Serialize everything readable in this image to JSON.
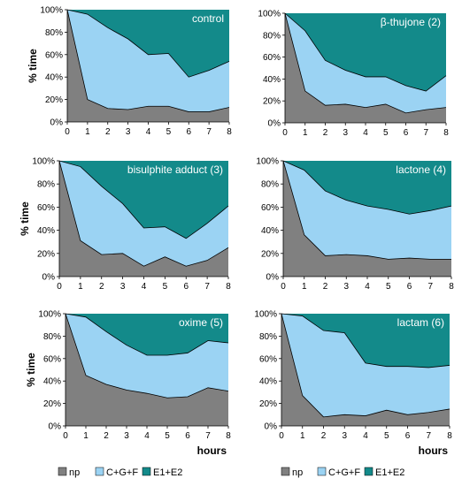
{
  "colors": {
    "np": "#808080",
    "cgf": "#9bd3f3",
    "e1e2": "#138a8a",
    "outline": "#000000"
  },
  "legend_left": {
    "np": "np",
    "cgf": "C+G+F",
    "e1e2": "E1+E2"
  },
  "legend_right": {
    "np": "np",
    "cgf": "C+G+F",
    "e1e2": "E1+E2"
  },
  "chart_data": [
    {
      "type": "area",
      "stacked": true,
      "title": "control",
      "ylabel": "% time",
      "xlabel": "",
      "x": [
        0,
        1,
        2,
        3,
        4,
        5,
        6,
        7,
        8
      ],
      "ylim": [
        0,
        100
      ],
      "yticks": [
        "0%",
        "20%",
        "40%",
        "60%",
        "80%",
        "100%"
      ],
      "series": [
        {
          "name": "np",
          "values": [
            100,
            20,
            12,
            11,
            14,
            14,
            9,
            9,
            13
          ]
        },
        {
          "name": "C+G+F",
          "values": [
            0,
            76,
            72,
            63,
            46,
            47,
            31,
            37,
            41
          ]
        },
        {
          "name": "E1+E2",
          "values": [
            0,
            4,
            16,
            26,
            40,
            39,
            60,
            54,
            46
          ]
        }
      ]
    },
    {
      "type": "area",
      "stacked": true,
      "title": "β-thujone (2)",
      "ylabel": "",
      "xlabel": "",
      "x": [
        0,
        1,
        2,
        3,
        4,
        5,
        6,
        7,
        8
      ],
      "ylim": [
        0,
        100
      ],
      "yticks": [
        "0%",
        "20%",
        "40%",
        "60%",
        "80%",
        "100%"
      ],
      "series": [
        {
          "name": "np",
          "values": [
            100,
            29,
            16,
            17,
            14,
            17,
            9,
            12,
            14
          ]
        },
        {
          "name": "C+G+F",
          "values": [
            0,
            55,
            41,
            31,
            28,
            25,
            25,
            17,
            29
          ]
        },
        {
          "name": "E1+E2",
          "values": [
            0,
            16,
            43,
            52,
            58,
            58,
            66,
            71,
            57
          ]
        }
      ]
    },
    {
      "type": "area",
      "stacked": true,
      "title": "bisulphite adduct (3)",
      "ylabel": "% time",
      "xlabel": "",
      "x": [
        0,
        1,
        2,
        3,
        4,
        5,
        6,
        7,
        8
      ],
      "ylim": [
        0,
        100
      ],
      "yticks": [
        "0%",
        "20%",
        "40%",
        "60%",
        "80%",
        "100%"
      ],
      "series": [
        {
          "name": "np",
          "values": [
            100,
            31,
            19,
            20,
            9,
            17,
            9,
            14,
            25
          ]
        },
        {
          "name": "C+G+F",
          "values": [
            0,
            64,
            59,
            43,
            33,
            26,
            24,
            32,
            36
          ]
        },
        {
          "name": "E1+E2",
          "values": [
            0,
            5,
            22,
            37,
            58,
            57,
            67,
            54,
            39
          ]
        }
      ]
    },
    {
      "type": "area",
      "stacked": true,
      "title": "lactone (4)",
      "ylabel": "",
      "xlabel": "",
      "x": [
        0,
        1,
        2,
        3,
        4,
        5,
        6,
        7,
        8
      ],
      "ylim": [
        0,
        100
      ],
      "yticks": [
        "0%",
        "20%",
        "40%",
        "60%",
        "80%",
        "100%"
      ],
      "series": [
        {
          "name": "np",
          "values": [
            100,
            36,
            18,
            19,
            18,
            15,
            16,
            15,
            15
          ]
        },
        {
          "name": "C+G+F",
          "values": [
            0,
            56,
            56,
            47,
            43,
            43,
            38,
            42,
            46
          ]
        },
        {
          "name": "E1+E2",
          "values": [
            0,
            8,
            26,
            34,
            39,
            42,
            46,
            43,
            39
          ]
        }
      ]
    },
    {
      "type": "area",
      "stacked": true,
      "title": "oxime (5)",
      "ylabel": "% time",
      "xlabel": "hours",
      "x": [
        0,
        1,
        2,
        3,
        4,
        5,
        6,
        7,
        8
      ],
      "ylim": [
        0,
        100
      ],
      "yticks": [
        "0%",
        "20%",
        "40%",
        "60%",
        "80%",
        "100%"
      ],
      "series": [
        {
          "name": "np",
          "values": [
            100,
            45,
            37,
            32,
            29,
            25,
            26,
            34,
            31
          ]
        },
        {
          "name": "C+G+F",
          "values": [
            0,
            52,
            47,
            40,
            34,
            38,
            39,
            42,
            43
          ]
        },
        {
          "name": "E1+E2",
          "values": [
            0,
            3,
            16,
            28,
            37,
            37,
            35,
            24,
            26
          ]
        }
      ]
    },
    {
      "type": "area",
      "stacked": true,
      "title": "lactam (6)",
      "ylabel": "",
      "xlabel": "hours",
      "x": [
        0,
        1,
        2,
        3,
        4,
        5,
        6,
        7,
        8
      ],
      "ylim": [
        0,
        100
      ],
      "yticks": [
        "0%",
        "20%",
        "40%",
        "60%",
        "80%",
        "100%"
      ],
      "series": [
        {
          "name": "np",
          "values": [
            100,
            27,
            8,
            10,
            9,
            14,
            10,
            12,
            15
          ]
        },
        {
          "name": "C+G+F",
          "values": [
            0,
            71,
            77,
            73,
            47,
            39,
            43,
            40,
            39
          ]
        },
        {
          "name": "E1+E2",
          "values": [
            0,
            2,
            15,
            17,
            44,
            47,
            47,
            48,
            46
          ]
        }
      ]
    }
  ]
}
